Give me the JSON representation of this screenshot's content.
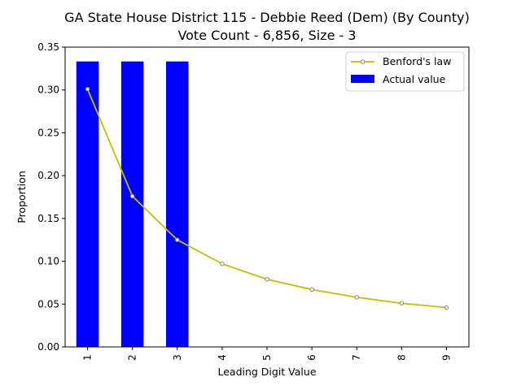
{
  "chart_data": {
    "type": "bar",
    "title_line1": "GA State House District 115 - Debbie Reed (Dem) (By County)",
    "title_line2": "Vote Count - 6,856, Size - 3",
    "xlabel": "Leading Digit Value",
    "ylabel": "Proportion",
    "categories": [
      "1",
      "2",
      "3",
      "4",
      "5",
      "6",
      "7",
      "8",
      "9"
    ],
    "ylim": [
      0,
      0.35
    ],
    "yticks": [
      0.0,
      0.05,
      0.1,
      0.15,
      0.2,
      0.25,
      0.3,
      0.35
    ],
    "ytick_labels": [
      "0.00",
      "0.05",
      "0.10",
      "0.15",
      "0.20",
      "0.25",
      "0.30",
      "0.35"
    ],
    "series": [
      {
        "name": "Actual value",
        "kind": "bar",
        "color": "#0000ff",
        "values": [
          0.3333,
          0.3333,
          0.3333,
          0,
          0,
          0,
          0,
          0,
          0
        ]
      },
      {
        "name": "Benford's law",
        "kind": "line",
        "color": "#bfbf00",
        "marker_color": "#808080",
        "values": [
          0.301,
          0.176,
          0.125,
          0.097,
          0.079,
          0.067,
          0.058,
          0.051,
          0.046
        ]
      }
    ],
    "grid": false,
    "legend_position": "top-right"
  }
}
